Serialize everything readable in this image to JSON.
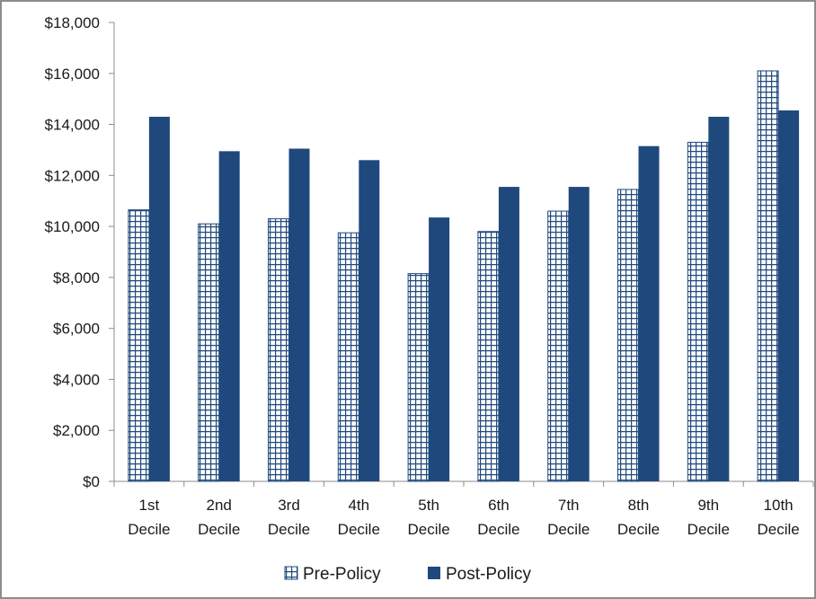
{
  "chart_data": {
    "type": "bar",
    "categories": [
      [
        "1st",
        "Decile"
      ],
      [
        "2nd",
        "Decile"
      ],
      [
        "3rd",
        "Decile"
      ],
      [
        "4th",
        "Decile"
      ],
      [
        "5th",
        "Decile"
      ],
      [
        "6th",
        "Decile"
      ],
      [
        "7th",
        "Decile"
      ],
      [
        "8th",
        "Decile"
      ],
      [
        "9th",
        "Decile"
      ],
      [
        "10th",
        "Decile"
      ]
    ],
    "series": [
      {
        "name": "Pre-Policy",
        "pattern": "grid",
        "color": "#1f497d",
        "values": [
          10650,
          10100,
          10300,
          9750,
          8150,
          9800,
          10600,
          11450,
          13300,
          16100
        ]
      },
      {
        "name": "Post-Policy",
        "pattern": "solid",
        "color": "#1f497d",
        "values": [
          14300,
          12950,
          13050,
          12600,
          10350,
          11550,
          11550,
          13150,
          14300,
          14550
        ]
      }
    ],
    "y_ticks": [
      "$0",
      "$2,000",
      "$4,000",
      "$6,000",
      "$8,000",
      "$10,000",
      "$12,000",
      "$14,000",
      "$16,000",
      "$18,000"
    ],
    "ylim": [
      0,
      18000
    ],
    "grid": false,
    "legend_position": "bottom"
  }
}
